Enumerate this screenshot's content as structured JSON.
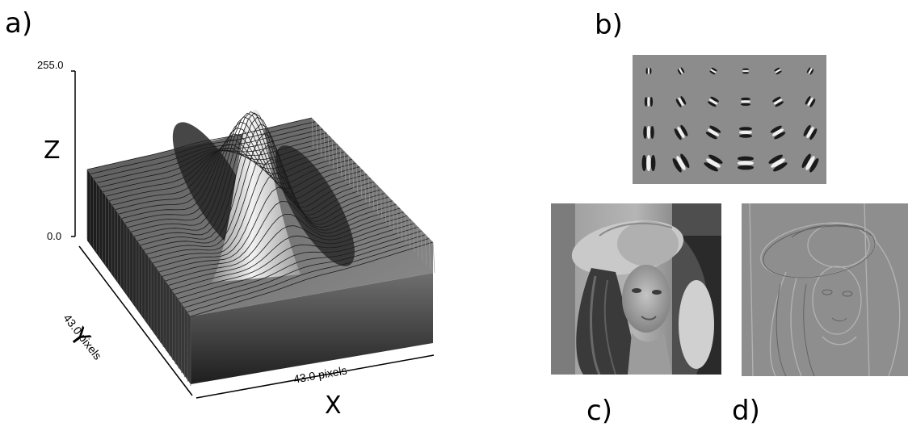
{
  "labels": {
    "a": "a)",
    "b": "b)",
    "c": "c)",
    "d": "d)"
  },
  "plot3d": {
    "z_axis": "Z",
    "y_axis": "Y",
    "x_axis": "X",
    "z_max": "255.0",
    "z_min": "0.0",
    "y_extent": "43.0 pixels",
    "x_extent": "43.0 pixels"
  },
  "filter_bank": {
    "rows": 4,
    "cols": 6
  }
}
